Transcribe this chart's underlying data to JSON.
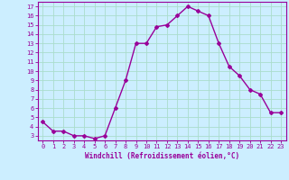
{
  "xlabel": "Windchill (Refroidissement éolien,°C)",
  "x": [
    0,
    1,
    2,
    3,
    4,
    5,
    6,
    7,
    8,
    9,
    10,
    11,
    12,
    13,
    14,
    15,
    16,
    17,
    18,
    19,
    20,
    21,
    22,
    23
  ],
  "y": [
    4.5,
    3.5,
    3.5,
    3.0,
    3.0,
    2.7,
    3.0,
    6.0,
    9.0,
    13.0,
    13.0,
    14.8,
    15.0,
    16.0,
    17.0,
    16.5,
    16.0,
    13.0,
    10.5,
    9.5,
    8.0,
    7.5,
    5.5,
    5.5
  ],
  "ylim_min": 2.5,
  "ylim_max": 17.5,
  "xlim_min": -0.5,
  "xlim_max": 23.5,
  "yticks": [
    3,
    4,
    5,
    6,
    7,
    8,
    9,
    10,
    11,
    12,
    13,
    14,
    15,
    16,
    17
  ],
  "xticks": [
    0,
    1,
    2,
    3,
    4,
    5,
    6,
    7,
    8,
    9,
    10,
    11,
    12,
    13,
    14,
    15,
    16,
    17,
    18,
    19,
    20,
    21,
    22,
    23
  ],
  "line_color": "#990099",
  "marker": "D",
  "marker_size": 2,
  "bg_color": "#cceeff",
  "grid_color": "#aaddcc",
  "tick_label_color": "#990099",
  "xlabel_color": "#990099",
  "spine_color": "#990099",
  "line_width": 1.0,
  "tick_fontsize": 5.0,
  "xlabel_fontsize": 5.5
}
